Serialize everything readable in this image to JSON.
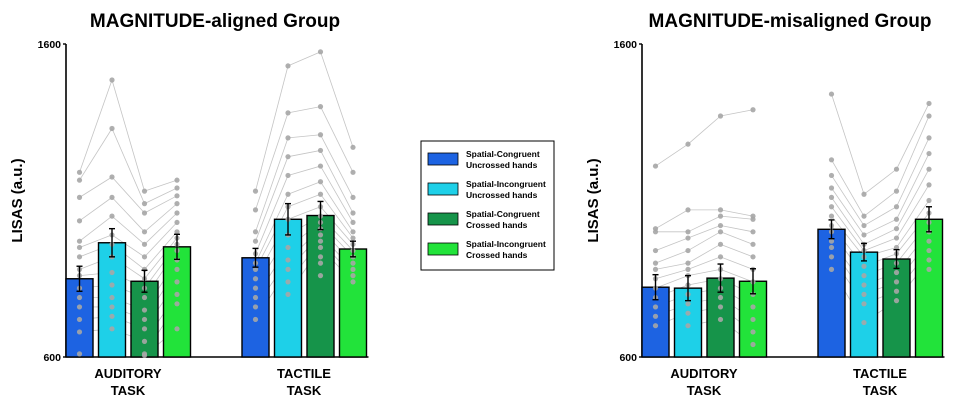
{
  "chart_data": [
    {
      "type": "bar",
      "title": "MAGNITUDE-aligned Group",
      "ylabel": "LISAS (a.u.)",
      "ylim": [
        600,
        1600
      ],
      "yticks": [
        "600",
        "1600"
      ],
      "categories": [
        [
          "AUDITORY",
          "TASK"
        ],
        [
          "TACTILE",
          "TASK"
        ]
      ],
      "series": [
        {
          "values": [
            850,
            917
          ],
          "errors": [
            40,
            30
          ]
        },
        {
          "values": [
            965,
            1040
          ],
          "errors": [
            45,
            50
          ]
        },
        {
          "values": [
            842,
            1052
          ],
          "errors": [
            35,
            45
          ]
        },
        {
          "values": [
            952,
            945
          ],
          "errors": [
            40,
            25
          ]
        }
      ],
      "points": [
        [
          [
            1190,
            1165,
            1110,
            1035,
            970,
            950,
            920,
            880,
            860,
            820,
            790,
            760,
            720,
            680,
            610
          ],
          [
            1485,
            1330,
            1175,
            1110,
            1050,
            990,
            960,
            920,
            870,
            830,
            790,
            760,
            730,
            690
          ],
          [
            1130,
            1090,
            1060,
            1000,
            960,
            920,
            880,
            850,
            820,
            790,
            750,
            720,
            690,
            650,
            610,
            605
          ],
          [
            1165,
            1140,
            1115,
            1090,
            1060,
            1030,
            1000,
            980,
            960,
            940,
            910,
            880,
            840,
            800,
            770,
            690
          ]
        ],
        [
          [
            1130,
            1070,
            1000,
            970,
            930,
            900,
            880,
            850,
            820,
            790,
            760,
            720
          ],
          [
            1530,
            1380,
            1300,
            1240,
            1180,
            1120,
            1080,
            1040,
            990,
            950,
            910,
            880,
            840,
            800
          ],
          [
            1575,
            1400,
            1310,
            1260,
            1210,
            1160,
            1120,
            1080,
            1050,
            1030,
            1010,
            990,
            970,
            950,
            920,
            900,
            860
          ],
          [
            1270,
            1190,
            1110,
            1060,
            1030,
            1000,
            980,
            960,
            940,
            920,
            900,
            880,
            860,
            840
          ]
        ]
      ]
    },
    {
      "type": "bar",
      "title": "MAGNITUDE-misaligned Group",
      "ylabel": "LISAS (a.u.)",
      "ylim": [
        600,
        1600
      ],
      "yticks": [
        "600",
        "1600"
      ],
      "categories": [
        [
          "AUDITORY",
          "TASK"
        ],
        [
          "TACTILE",
          "TASK"
        ]
      ],
      "series": [
        {
          "values": [
            823,
            1008
          ],
          "errors": [
            40,
            30
          ]
        },
        {
          "values": [
            820,
            935
          ],
          "errors": [
            40,
            28
          ]
        },
        {
          "values": [
            852,
            913
          ],
          "errors": [
            45,
            30
          ]
        },
        {
          "values": [
            842,
            1040
          ],
          "errors": [
            40,
            40
          ]
        }
      ],
      "points": [
        [
          [
            1210,
            1010,
            1000,
            940,
            900,
            880,
            850,
            820,
            790,
            760,
            730,
            700
          ],
          [
            1280,
            1070,
            1000,
            980,
            940,
            900,
            880,
            860,
            830,
            800,
            770,
            740,
            700
          ],
          [
            1370,
            1070,
            1050,
            1020,
            1000,
            960,
            920,
            880,
            850,
            820,
            790,
            760,
            720
          ],
          [
            1390,
            1050,
            1040,
            1000,
            960,
            920,
            880,
            840,
            800,
            760,
            720,
            680,
            640
          ]
        ],
        [
          [
            1440,
            1230,
            1180,
            1140,
            1110,
            1080,
            1050,
            1020,
            1000,
            970,
            950,
            920,
            880
          ],
          [
            1120,
            1050,
            1020,
            990,
            960,
            940,
            920,
            890,
            860,
            830,
            800,
            770,
            710
          ],
          [
            1200,
            1130,
            1080,
            1040,
            1010,
            980,
            950,
            930,
            900,
            870,
            840,
            810,
            780
          ],
          [
            1410,
            1370,
            1300,
            1250,
            1200,
            1150,
            1100,
            1060,
            1030,
            1000,
            970,
            940,
            910,
            880
          ]
        ]
      ]
    }
  ],
  "legend": [
    {
      "line1": "Spatial-Congruent",
      "line2": "Uncrossed hands",
      "color": "#1d63e2"
    },
    {
      "line1": "Spatial-Incongruent",
      "line2": "Uncrossed hands",
      "color": "#1ed0e8"
    },
    {
      "line1": "Spatial-Congruent",
      "line2": "Crossed hands",
      "color": "#16944a"
    },
    {
      "line1": "Spatial-Incongruent",
      "line2": "Crossed hands",
      "color": "#22e33a"
    }
  ],
  "colors": {
    "point": "#a6a6a6",
    "line": "#c4c4c4",
    "axis": "#000000"
  }
}
